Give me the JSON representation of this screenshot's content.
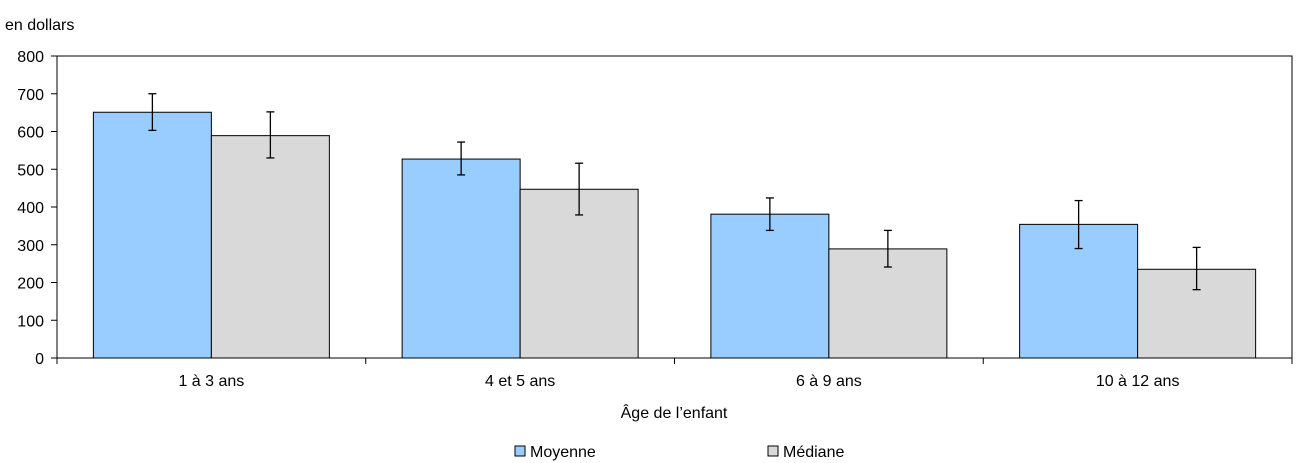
{
  "chart_data": {
    "type": "bar",
    "ylabel": "en dollars",
    "xlabel": "Âge de l’enfant",
    "categories": [
      "1 à 3 ans",
      "4 et 5 ans",
      "6 à 9 ans",
      "10 à 12 ans"
    ],
    "ylim": [
      0,
      800
    ],
    "yticks": [
      0,
      100,
      200,
      300,
      400,
      500,
      600,
      700,
      800
    ],
    "grid": false,
    "legend_position": "bottom",
    "series": [
      {
        "name": "Moyenne",
        "color": "#99ccff",
        "values": [
          651,
          527,
          381,
          354
        ],
        "error_low": [
          603,
          485,
          338,
          290
        ],
        "error_high": [
          700,
          572,
          424,
          417
        ]
      },
      {
        "name": "Médiane",
        "color": "#d9d9d9",
        "values": [
          589,
          447,
          289,
          235
        ],
        "error_low": [
          530,
          379,
          241,
          181
        ],
        "error_high": [
          652,
          516,
          338,
          293
        ]
      }
    ]
  }
}
